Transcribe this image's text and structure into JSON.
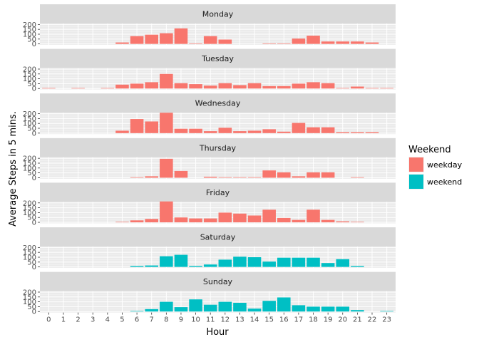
{
  "chart_data": {
    "type": "bar",
    "facet_by": "day",
    "xlabel": "Hour",
    "ylabel": "Average Steps in 5 mins.",
    "ylim": [
      0,
      200
    ],
    "y_ticks": [
      0,
      50,
      100,
      150,
      200
    ],
    "categories": [
      "0",
      "1",
      "2",
      "3",
      "4",
      "5",
      "6",
      "7",
      "8",
      "9",
      "10",
      "11",
      "12",
      "13",
      "14",
      "15",
      "16",
      "17",
      "18",
      "19",
      "20",
      "21",
      "22",
      "23"
    ],
    "legend": {
      "title": "Weekend",
      "position": "right",
      "entries": [
        {
          "label": "weekday",
          "color": "#F8766D"
        },
        {
          "label": "weekend",
          "color": "#00BFC4"
        }
      ]
    },
    "panels": [
      {
        "day": "Monday",
        "group": "weekday",
        "values": [
          0,
          0,
          0,
          0,
          0,
          15,
          80,
          95,
          110,
          160,
          5,
          80,
          45,
          0,
          0,
          5,
          5,
          55,
          85,
          25,
          25,
          25,
          15,
          0
        ]
      },
      {
        "day": "Tuesday",
        "group": "weekday",
        "values": [
          5,
          0,
          5,
          0,
          5,
          40,
          50,
          65,
          150,
          55,
          45,
          30,
          55,
          35,
          55,
          25,
          25,
          50,
          65,
          55,
          5,
          20,
          5,
          5
        ]
      },
      {
        "day": "Wednesday",
        "group": "weekday",
        "values": [
          0,
          0,
          0,
          0,
          0,
          25,
          145,
          120,
          210,
          45,
          45,
          20,
          55,
          20,
          25,
          40,
          15,
          105,
          60,
          60,
          10,
          10,
          10,
          0
        ]
      },
      {
        "day": "Thursday",
        "group": "weekday",
        "values": [
          0,
          0,
          0,
          0,
          0,
          0,
          5,
          15,
          195,
          70,
          0,
          10,
          5,
          5,
          5,
          75,
          55,
          15,
          55,
          55,
          0,
          5,
          0,
          0
        ]
      },
      {
        "day": "Friday",
        "group": "weekday",
        "values": [
          0,
          0,
          0,
          0,
          0,
          5,
          20,
          35,
          215,
          50,
          40,
          40,
          100,
          90,
          70,
          130,
          45,
          25,
          130,
          25,
          10,
          5,
          0,
          0
        ]
      },
      {
        "day": "Saturday",
        "group": "weekend",
        "values": [
          0,
          0,
          0,
          0,
          0,
          0,
          10,
          15,
          110,
          125,
          10,
          25,
          75,
          105,
          100,
          55,
          95,
          95,
          95,
          40,
          80,
          10,
          0,
          0
        ]
      },
      {
        "day": "Sunday",
        "group": "weekend",
        "values": [
          0,
          0,
          0,
          0,
          0,
          0,
          5,
          25,
          100,
          45,
          125,
          70,
          100,
          90,
          30,
          110,
          145,
          65,
          50,
          50,
          50,
          15,
          0,
          5
        ]
      }
    ]
  }
}
